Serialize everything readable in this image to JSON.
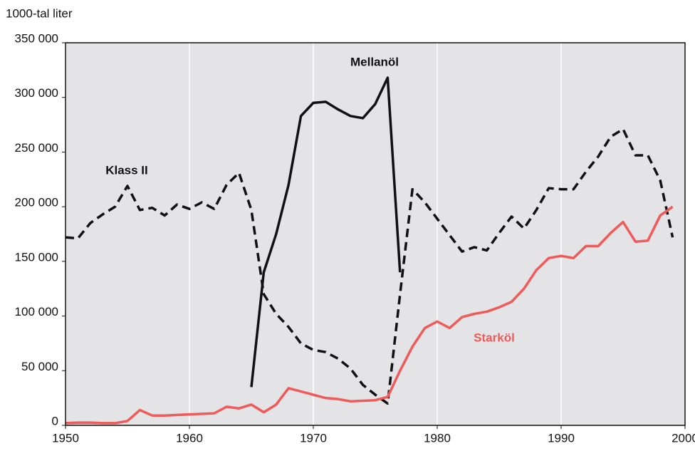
{
  "chart_data": {
    "type": "line",
    "ylabel": "1000-tal liter",
    "x": [
      1950,
      1951,
      1952,
      1953,
      1954,
      1955,
      1956,
      1957,
      1958,
      1959,
      1960,
      1961,
      1962,
      1963,
      1964,
      1965,
      1966,
      1967,
      1968,
      1969,
      1970,
      1971,
      1972,
      1973,
      1974,
      1975,
      1976,
      1977,
      1978,
      1979,
      1980,
      1981,
      1982,
      1983,
      1984,
      1985,
      1986,
      1987,
      1988,
      1989,
      1990,
      1991,
      1992,
      1993,
      1994,
      1995,
      1996,
      1997,
      1998,
      1999
    ],
    "series": [
      {
        "name": "Klass II",
        "color": "#111111",
        "dashed": true,
        "values": [
          172000,
          171000,
          185000,
          193000,
          200000,
          219000,
          197000,
          199000,
          192000,
          202000,
          198000,
          204000,
          198000,
          220000,
          231000,
          197000,
          120000,
          102000,
          90000,
          75000,
          69000,
          67000,
          61000,
          52000,
          37000,
          28000,
          20000,
          120000,
          216000,
          204000,
          189000,
          174000,
          159000,
          163000,
          160000,
          176000,
          191000,
          180000,
          197000,
          217000,
          216000,
          216000,
          232000,
          246000,
          264000,
          271000,
          247000,
          247000,
          224000,
          172000
        ]
      },
      {
        "name": "Mellanöl",
        "color": "#111111",
        "dashed": false,
        "values": [
          null,
          null,
          null,
          null,
          null,
          null,
          null,
          null,
          null,
          null,
          null,
          null,
          null,
          null,
          null,
          35000,
          140000,
          175000,
          220000,
          283000,
          295000,
          296000,
          289000,
          283000,
          281000,
          294000,
          318000,
          140000,
          null,
          null,
          null,
          null,
          null,
          null,
          null,
          null,
          null,
          null,
          null,
          null,
          null,
          null,
          null,
          null,
          null,
          null,
          null,
          null,
          null,
          null
        ]
      },
      {
        "name": "Starköl",
        "color": "#ef5a5a",
        "dashed": false,
        "values": [
          2000,
          2500,
          2500,
          2000,
          2000,
          4000,
          14000,
          9000,
          9000,
          9500,
          10000,
          10500,
          11000,
          17000,
          15500,
          19000,
          12000,
          19000,
          34000,
          31000,
          28000,
          25000,
          24000,
          22000,
          22500,
          23000,
          26000,
          50000,
          72000,
          89000,
          95000,
          89000,
          99000,
          102000,
          104000,
          108000,
          113000,
          125000,
          142000,
          153000,
          155000,
          153000,
          164000,
          164000,
          176000,
          186000,
          168000,
          169000,
          192000,
          200000
        ]
      }
    ],
    "xlim": [
      1950,
      2000
    ],
    "xticks": [
      1950,
      1960,
      1970,
      1980,
      1990,
      2000
    ],
    "ylim": [
      0,
      350000
    ],
    "yticks": [
      0,
      {
        "value": 50000,
        "label": "50 000"
      },
      {
        "value": 100000,
        "label": "100 000"
      },
      {
        "value": 150000,
        "label": "150 000"
      },
      {
        "value": 200000,
        "label": "200 000"
      },
      {
        "value": 250000,
        "label": "250 000"
      },
      {
        "value": 300000,
        "label": "300 000"
      },
      {
        "value": 350000,
        "label": "350 000"
      }
    ],
    "grid": "x",
    "background": "#e4e4e6"
  }
}
